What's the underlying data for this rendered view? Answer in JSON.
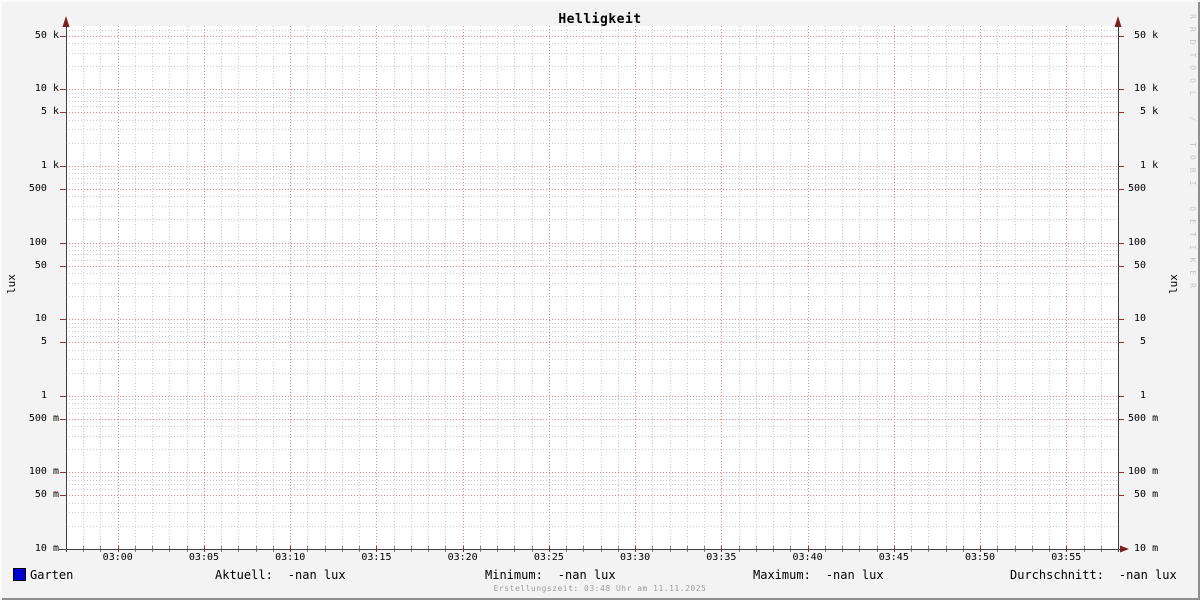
{
  "watermark": "RRDTOOL / TOBI OETIKER",
  "footer": "Erstellungszeit: 03:48 Uhr am 11.11.2025",
  "colors": {
    "canvas_bg": "#f3f3f3",
    "plot_bg": "#ffffff",
    "grid_minor": "#cccccc",
    "grid_major": "#f08080",
    "axis": "#404040",
    "arrow": "#7c1f1f",
    "tick_minor": "#808080",
    "tick_major": "#9c2f2f",
    "series_blue": "#0000cf",
    "watermark_gray": "#c6c6c6",
    "footer_gray": "#9c9c9c"
  },
  "chart_data": {
    "type": "line",
    "title": "Helligkeit",
    "y_axis": {
      "unit_label": "lux",
      "scale": "log",
      "min": 0.01,
      "max": 67000,
      "ticks": [
        {
          "num": "50",
          "suffix": "k",
          "value": 50000
        },
        {
          "num": "10",
          "suffix": "k",
          "value": 10000
        },
        {
          "num": "5",
          "suffix": "k",
          "value": 5000
        },
        {
          "num": "1",
          "suffix": "k",
          "value": 1000
        },
        {
          "num": "500",
          "suffix": "",
          "value": 500
        },
        {
          "num": "100",
          "suffix": "",
          "value": 100
        },
        {
          "num": "50",
          "suffix": "",
          "value": 50
        },
        {
          "num": "10",
          "suffix": "",
          "value": 10
        },
        {
          "num": "5",
          "suffix": "",
          "value": 5
        },
        {
          "num": "1",
          "suffix": "",
          "value": 1
        },
        {
          "num": "500",
          "suffix": "m",
          "value": 0.5
        },
        {
          "num": "100",
          "suffix": "m",
          "value": 0.1
        },
        {
          "num": "50",
          "suffix": "m",
          "value": 0.05
        },
        {
          "num": "10",
          "suffix": "m",
          "value": 0.01
        }
      ]
    },
    "x_axis": {
      "labels": [
        "03:00",
        "03:05",
        "03:10",
        "03:15",
        "03:20",
        "03:25",
        "03:30",
        "03:35",
        "03:40",
        "03:45",
        "03:50",
        "03:55"
      ],
      "first_label_minute": 3,
      "label_step_minutes": 5,
      "total_minutes": 61
    },
    "series": [
      {
        "name": "Garten",
        "color": "#0000cf",
        "values": []
      }
    ],
    "stats": [
      {
        "label": "Aktuell:",
        "value": "-nan lux"
      },
      {
        "label": "Minimum:",
        "value": "-nan lux"
      },
      {
        "label": "Maximum:",
        "value": "-nan lux"
      },
      {
        "label": "Durchschnitt:",
        "value": "-nan lux"
      }
    ]
  }
}
